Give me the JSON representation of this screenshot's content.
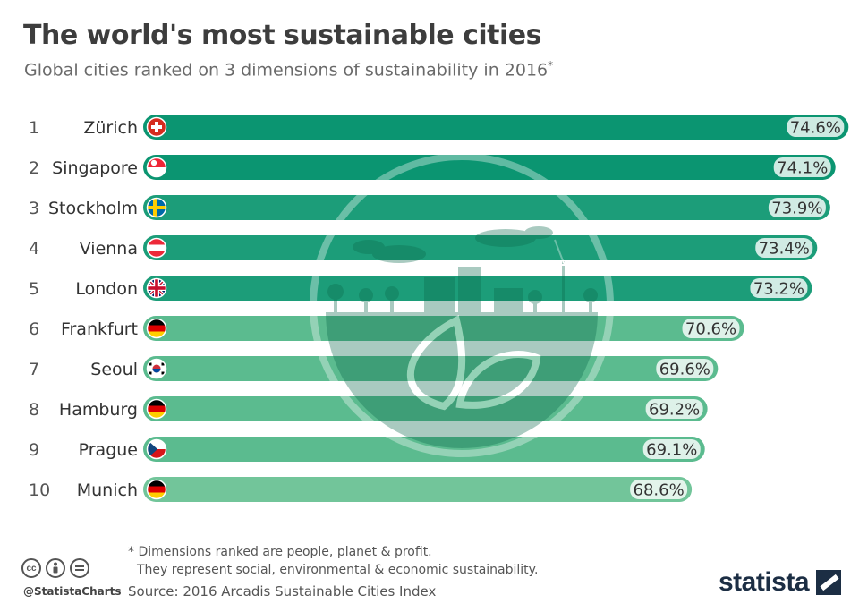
{
  "title": "The world's most sustainable cities",
  "subtitle": "Global cities ranked on 3 dimensions of sustainability in 2016",
  "subtitle_mark": "*",
  "chart_data": {
    "type": "bar",
    "orientation": "horizontal",
    "categories": [
      "Zürich",
      "Singapore",
      "Stockholm",
      "Vienna",
      "London",
      "Frankfurt",
      "Seoul",
      "Hamburg",
      "Prague",
      "Munich"
    ],
    "ranks": [
      "1",
      "2",
      "3",
      "4",
      "5",
      "6",
      "7",
      "8",
      "9",
      "10"
    ],
    "values": [
      74.6,
      74.1,
      73.9,
      73.4,
      73.2,
      70.6,
      69.6,
      69.2,
      69.1,
      68.6
    ],
    "value_labels": [
      "74.6%",
      "74.1%",
      "73.9%",
      "73.4%",
      "73.2%",
      "70.6%",
      "69.6%",
      "69.2%",
      "69.1%",
      "68.6%"
    ],
    "flags": [
      "switzerland-flag",
      "singapore-flag",
      "sweden-flag",
      "austria-flag",
      "uk-flag",
      "germany-flag",
      "south-korea-flag",
      "germany-flag",
      "czech-flag",
      "germany-flag"
    ],
    "unit": "%",
    "grid": false,
    "legend": "none",
    "colors": [
      "#0b9571",
      "#0b9571",
      "#1c9d79",
      "#1c9d79",
      "#1c9d79",
      "#5bbb8f",
      "#5bbb8f",
      "#5bbb8f",
      "#5bbb8f",
      "#72c59a"
    ]
  },
  "footnote": {
    "line1": "* Dimensions ranked are people, planet & profit.",
    "line2": "They represent social, environmental & economic sustainability."
  },
  "source": "Source: 2016 Arcadis Sustainable Cities Index",
  "handle": "@StatistaCharts",
  "brand": "statista",
  "license_icons": [
    "cc-icon",
    "attribution-icon",
    "no-derivatives-icon"
  ]
}
